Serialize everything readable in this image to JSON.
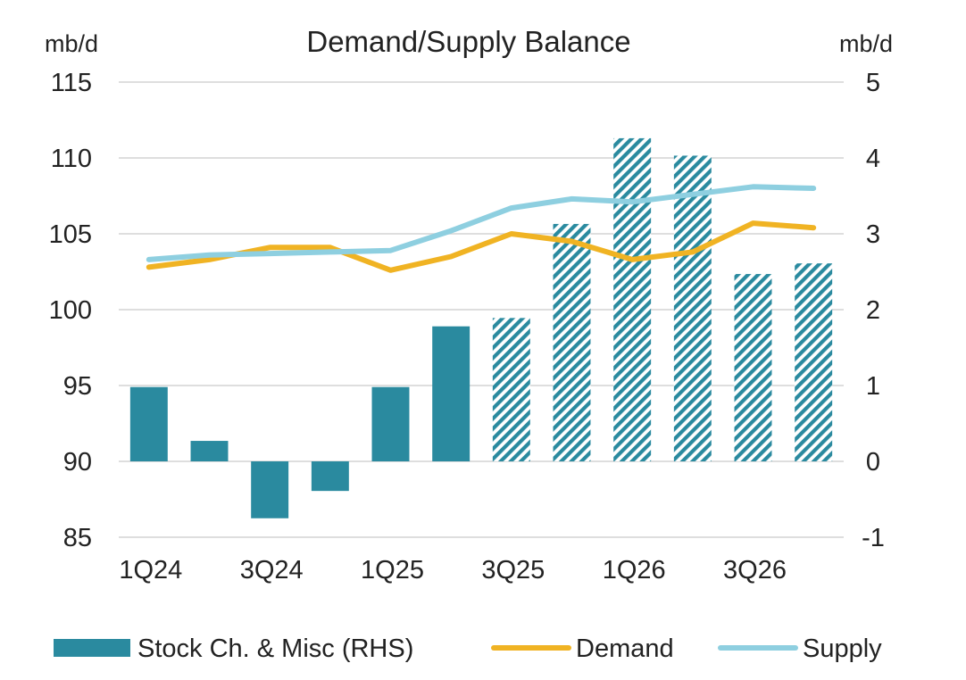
{
  "chart_data": {
    "type": "bar+line",
    "title": "Demand/Supply Balance",
    "left_axis_label": "mb/d",
    "right_axis_label": "mb/d",
    "left_ylim": [
      85,
      115
    ],
    "left_ticks": [
      85,
      90,
      95,
      100,
      105,
      110,
      115
    ],
    "right_ylim": [
      -1,
      5
    ],
    "right_ticks": [
      -1,
      0,
      1,
      2,
      3,
      4,
      5
    ],
    "grid": true,
    "categories": [
      "1Q24",
      "2Q24",
      "3Q24",
      "4Q24",
      "1Q25",
      "2Q25",
      "3Q25",
      "4Q25",
      "1Q26",
      "2Q26",
      "3Q26",
      "4Q26"
    ],
    "x_tick_labels": [
      "1Q24",
      "3Q24",
      "1Q25",
      "3Q25",
      "1Q26",
      "3Q26"
    ],
    "forecast_start_index": 6,
    "series": [
      {
        "name": "Stock Ch. & Misc (RHS)",
        "type": "bar",
        "axis": "right",
        "color": "#2a8a9f",
        "values": [
          0.98,
          0.27,
          -0.75,
          -0.39,
          0.98,
          1.78,
          1.89,
          3.13,
          4.26,
          4.03,
          2.47,
          2.61
        ]
      },
      {
        "name": "Demand",
        "type": "line",
        "axis": "left",
        "color": "#f0b323",
        "values": [
          102.8,
          103.3,
          104.1,
          104.1,
          102.6,
          103.5,
          105.0,
          104.5,
          103.3,
          103.8,
          105.7,
          105.4
        ]
      },
      {
        "name": "Supply",
        "type": "line",
        "axis": "left",
        "color": "#8ecfe0",
        "values": [
          103.3,
          103.6,
          103.7,
          103.8,
          103.9,
          105.2,
          106.7,
          107.3,
          107.1,
          107.6,
          108.1,
          108.0
        ]
      }
    ],
    "legend": {
      "position": "bottom",
      "items": [
        {
          "label": "Stock Ch. & Misc (RHS)",
          "kind": "bar",
          "color": "#2a8a9f"
        },
        {
          "label": "Demand",
          "kind": "line",
          "color": "#f0b323"
        },
        {
          "label": "Supply",
          "kind": "line",
          "color": "#8ecfe0"
        }
      ]
    }
  }
}
